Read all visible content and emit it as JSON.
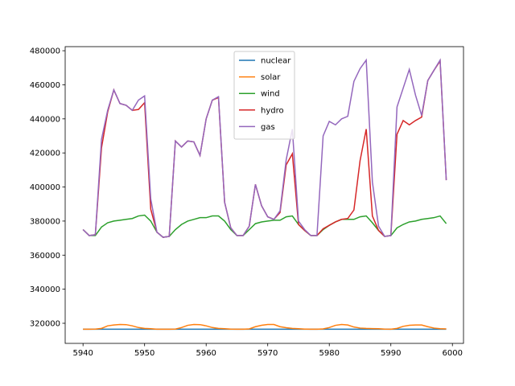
{
  "chart_data": {
    "type": "line",
    "x": [
      5940,
      5941,
      5942,
      5943,
      5944,
      5945,
      5946,
      5947,
      5948,
      5949,
      5950,
      5951,
      5952,
      5953,
      5954,
      5955,
      5956,
      5957,
      5958,
      5959,
      5960,
      5961,
      5962,
      5963,
      5964,
      5965,
      5966,
      5967,
      5968,
      5969,
      5970,
      5971,
      5972,
      5973,
      5974,
      5975,
      5976,
      5977,
      5978,
      5979,
      5980,
      5981,
      5982,
      5983,
      5984,
      5985,
      5986,
      5987,
      5988,
      5989,
      5990,
      5991,
      5992,
      5993,
      5994,
      5995,
      5996,
      5997,
      5998,
      5999
    ],
    "series": [
      {
        "name": "nuclear",
        "color": "#1f77b4",
        "values": [
          316500,
          316500,
          316500,
          316500,
          316500,
          316500,
          316500,
          316500,
          316500,
          316500,
          316500,
          316500,
          316500,
          316500,
          316500,
          316500,
          316500,
          316500,
          316500,
          316500,
          316500,
          316500,
          316500,
          316500,
          316500,
          316500,
          316500,
          316500,
          316500,
          316500,
          316500,
          316500,
          316500,
          316500,
          316500,
          316500,
          316500,
          316500,
          316500,
          316500,
          316500,
          316500,
          316500,
          316500,
          316500,
          316500,
          316500,
          316500,
          316500,
          316500,
          316500,
          316500,
          316500,
          316500,
          316500,
          316500,
          316500,
          316500,
          316500,
          316500
        ]
      },
      {
        "name": "solar",
        "color": "#ff7f0e",
        "values": [
          316500,
          316500,
          316600,
          317000,
          318500,
          319000,
          319300,
          319200,
          318500,
          317500,
          317000,
          316800,
          316500,
          316500,
          316500,
          316600,
          317500,
          318800,
          319300,
          319200,
          318500,
          317500,
          317000,
          316800,
          316600,
          316500,
          316500,
          316700,
          318000,
          318800,
          319300,
          319300,
          318000,
          317400,
          317000,
          316800,
          316600,
          316500,
          316500,
          316700,
          317500,
          318800,
          319300,
          319000,
          317800,
          317200,
          317000,
          316900,
          316800,
          316600,
          316500,
          317000,
          318200,
          318800,
          319000,
          319000,
          318000,
          317200,
          316800,
          316700
        ]
      },
      {
        "name": "wind",
        "color": "#2ca02c",
        "values": [
          375000,
          371500,
          371500,
          376500,
          379000,
          380000,
          380500,
          381000,
          381500,
          383000,
          383500,
          380000,
          373500,
          370500,
          371000,
          375000,
          378000,
          380000,
          381000,
          382000,
          382000,
          383000,
          383000,
          380000,
          375000,
          371500,
          371500,
          375000,
          378500,
          379500,
          380000,
          380500,
          380500,
          382500,
          383000,
          378000,
          374500,
          371500,
          371500,
          375000,
          377500,
          379500,
          381000,
          381000,
          381000,
          382500,
          383000,
          379000,
          374500,
          371000,
          371500,
          376000,
          378000,
          379500,
          380000,
          381000,
          381500,
          382000,
          383000,
          378500
        ]
      },
      {
        "name": "hydro",
        "color": "#d62728",
        "values": [
          375000,
          371500,
          372000,
          423000,
          444000,
          457000,
          449000,
          448000,
          445000,
          445500,
          449500,
          387000,
          373500,
          370500,
          371000,
          427000,
          423500,
          427000,
          426500,
          418500,
          440000,
          451000,
          452500,
          391000,
          376000,
          371500,
          371500,
          377000,
          401500,
          389000,
          382500,
          381000,
          385000,
          413000,
          419500,
          378000,
          374500,
          371500,
          371500,
          375500,
          377500,
          379500,
          381000,
          381500,
          386500,
          415500,
          434000,
          383000,
          374500,
          371000,
          371500,
          431000,
          439000,
          436500,
          439000,
          441000,
          462500,
          468500,
          474000,
          404000
        ]
      },
      {
        "name": "gas",
        "color": "#9467bd",
        "values": [
          375000,
          371500,
          372000,
          428000,
          445000,
          457000,
          449000,
          448000,
          445000,
          451000,
          453500,
          393000,
          373500,
          370500,
          371000,
          427000,
          423500,
          427000,
          426500,
          418500,
          440000,
          451000,
          453000,
          391000,
          376000,
          371500,
          371500,
          377000,
          401500,
          389000,
          382500,
          381000,
          386000,
          416000,
          434000,
          380000,
          375000,
          371500,
          371500,
          430000,
          438500,
          436500,
          440000,
          441500,
          462000,
          469500,
          474500,
          403000,
          377000,
          371000,
          371500,
          447000,
          458000,
          469000,
          454000,
          442000,
          462500,
          468500,
          474500,
          404000
        ]
      }
    ],
    "xlim": [
      5937.1,
      6001.8
    ],
    "xticks": [
      5940,
      5950,
      5960,
      5970,
      5980,
      5990,
      6000
    ],
    "ylim": [
      308200,
      482400
    ],
    "yticks": [
      320000,
      340000,
      360000,
      380000,
      400000,
      420000,
      440000,
      460000,
      480000
    ],
    "legend": "upper center"
  }
}
